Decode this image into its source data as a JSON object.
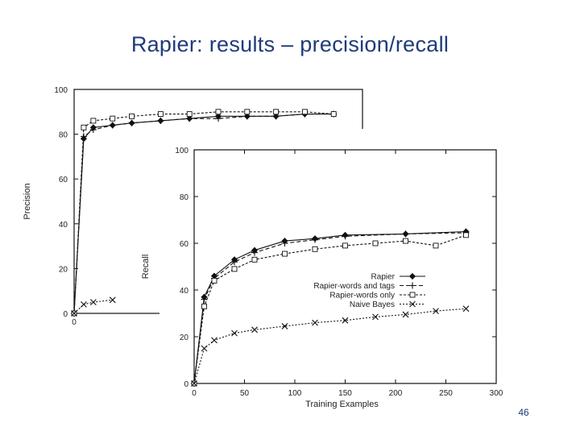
{
  "slide": {
    "title": "Rapier: results – precision/recall",
    "page_number": "46"
  },
  "chart_data": [
    {
      "type": "line",
      "title": "",
      "xlabel": "",
      "ylabel": "Precision",
      "xlim": [
        0,
        300
      ],
      "ylim": [
        0,
        100
      ],
      "x_ticks": [
        "0"
      ],
      "y_ticks": [
        "0",
        "20",
        "40",
        "60",
        "80",
        "100"
      ],
      "grid": false,
      "series": [
        {
          "name": "Rapier",
          "marker": "diamond",
          "dash": "",
          "points": [
            [
              0,
              0
            ],
            [
              10,
              78
            ],
            [
              20,
              83
            ],
            [
              40,
              84
            ],
            [
              60,
              85
            ],
            [
              90,
              86
            ],
            [
              120,
              87
            ],
            [
              150,
              88
            ],
            [
              180,
              88
            ],
            [
              210,
              88
            ],
            [
              240,
              89
            ],
            [
              270,
              89
            ]
          ]
        },
        {
          "name": "Rapier-words and tags",
          "marker": "plus",
          "dash": "5 3",
          "points": [
            [
              0,
              0
            ],
            [
              10,
              79
            ],
            [
              20,
              82
            ],
            [
              40,
              84
            ],
            [
              60,
              85
            ],
            [
              90,
              86
            ],
            [
              120,
              87
            ],
            [
              150,
              87
            ],
            [
              180,
              88
            ],
            [
              210,
              88
            ],
            [
              240,
              89
            ],
            [
              270,
              89
            ]
          ]
        },
        {
          "name": "Rapier-words only",
          "marker": "square",
          "dash": "3 2",
          "points": [
            [
              0,
              0
            ],
            [
              10,
              83
            ],
            [
              20,
              86
            ],
            [
              40,
              87
            ],
            [
              60,
              88
            ],
            [
              90,
              89
            ],
            [
              120,
              89
            ],
            [
              150,
              90
            ],
            [
              180,
              90
            ],
            [
              210,
              90
            ],
            [
              240,
              90
            ],
            [
              270,
              89
            ]
          ]
        },
        {
          "name": "Naive Bayes",
          "marker": "x",
          "dash": "2 2",
          "points": [
            [
              0,
              0
            ],
            [
              10,
              4
            ],
            [
              20,
              5
            ],
            [
              40,
              6
            ]
          ]
        }
      ]
    },
    {
      "type": "line",
      "title": "",
      "xlabel": "Training Examples",
      "ylabel": "Recall",
      "xlim": [
        0,
        300
      ],
      "ylim": [
        0,
        100
      ],
      "x_ticks": [
        "0",
        "50",
        "100",
        "150",
        "200",
        "250",
        "300"
      ],
      "y_ticks": [
        "0",
        "20",
        "40",
        "60",
        "80",
        "100"
      ],
      "grid": false,
      "legend_position": "right",
      "series": [
        {
          "name": "Rapier",
          "marker": "diamond",
          "dash": "",
          "points": [
            [
              0,
              0
            ],
            [
              10,
              37
            ],
            [
              20,
              46
            ],
            [
              40,
              53
            ],
            [
              60,
              57
            ],
            [
              90,
              61
            ],
            [
              120,
              62
            ],
            [
              150,
              63.5
            ],
            [
              210,
              64
            ],
            [
              270,
              65
            ]
          ]
        },
        {
          "name": "Rapier-words and tags",
          "marker": "plus",
          "dash": "5 3",
          "points": [
            [
              0,
              0
            ],
            [
              10,
              36
            ],
            [
              20,
              45
            ],
            [
              40,
              52
            ],
            [
              60,
              56
            ],
            [
              90,
              60
            ],
            [
              120,
              61.5
            ],
            [
              150,
              63
            ],
            [
              210,
              64
            ],
            [
              270,
              64.5
            ]
          ]
        },
        {
          "name": "Rapier-words only",
          "marker": "square",
          "dash": "3 2",
          "points": [
            [
              0,
              0
            ],
            [
              10,
              33
            ],
            [
              20,
              44
            ],
            [
              40,
              49
            ],
            [
              60,
              53
            ],
            [
              90,
              55.5
            ],
            [
              120,
              57.5
            ],
            [
              150,
              59
            ],
            [
              180,
              60
            ],
            [
              210,
              61
            ],
            [
              240,
              59
            ],
            [
              270,
              63.5
            ]
          ]
        },
        {
          "name": "Naive Bayes",
          "marker": "x",
          "dash": "2 2",
          "points": [
            [
              0,
              0
            ],
            [
              10,
              15
            ],
            [
              20,
              18.5
            ],
            [
              40,
              21.5
            ],
            [
              60,
              23
            ],
            [
              90,
              24.5
            ],
            [
              120,
              26
            ],
            [
              150,
              27
            ],
            [
              180,
              28.5
            ],
            [
              210,
              29.5
            ],
            [
              240,
              31
            ],
            [
              270,
              32
            ]
          ]
        }
      ]
    }
  ]
}
